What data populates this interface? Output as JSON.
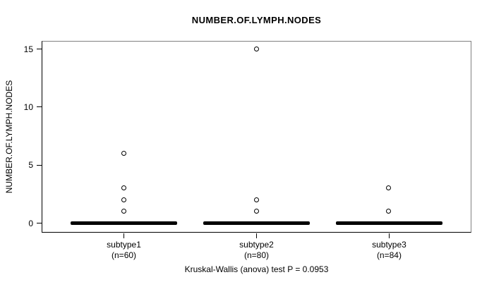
{
  "title": "NUMBER.OF.LYMPH.NODES",
  "caption": "Kruskal-Wallis (anova) test P = 0.0953",
  "colors": {
    "foreground": "#000000",
    "background": "#ffffff"
  },
  "chart_data": {
    "type": "boxplot",
    "title": "NUMBER.OF.LYMPH.NODES",
    "xlabel": "",
    "ylabel": "NUMBER.OF.LYMPH.NODES",
    "ylim": [
      -0.8,
      15.7
    ],
    "yticks": [
      0,
      5,
      10,
      15
    ],
    "grid": false,
    "legend": false,
    "groups": [
      {
        "label": "subtype1",
        "sublabel": "(n=60)",
        "n": 60,
        "median": 0,
        "q1": 0,
        "q3": 0,
        "whisker_low": 0,
        "whisker_high": 0,
        "outliers": [
          1,
          2,
          3,
          6
        ]
      },
      {
        "label": "subtype2",
        "sublabel": "(n=80)",
        "n": 80,
        "median": 0,
        "q1": 0,
        "q3": 0,
        "whisker_low": 0,
        "whisker_high": 0,
        "outliers": [
          1,
          2,
          15
        ]
      },
      {
        "label": "subtype3",
        "sublabel": "(n=84)",
        "n": 84,
        "median": 0,
        "q1": 0,
        "q3": 0,
        "whisker_low": 0,
        "whisker_high": 0,
        "outliers": [
          1,
          3
        ]
      }
    ],
    "footnote": "Kruskal-Wallis (anova) test P = 0.0953"
  }
}
